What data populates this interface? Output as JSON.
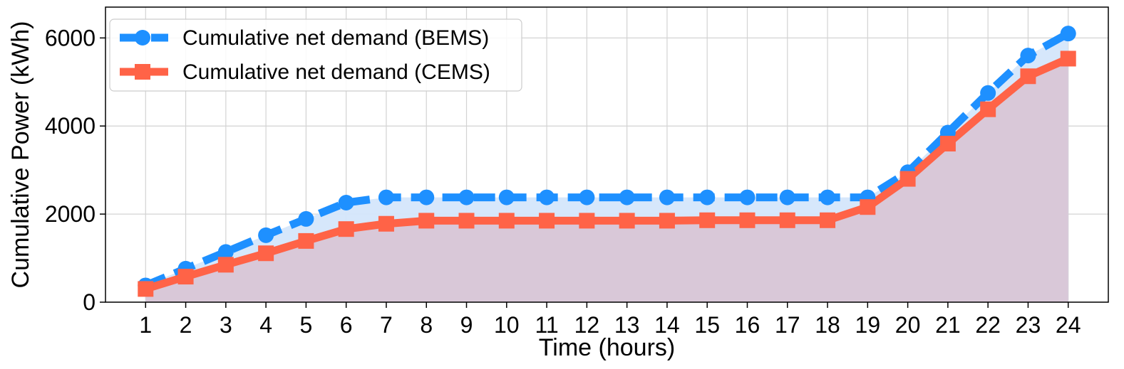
{
  "chart_data": {
    "type": "line",
    "title": "",
    "xlabel": "Time (hours)",
    "ylabel": "Cumulative Power (kWh)",
    "x": [
      1,
      2,
      3,
      4,
      5,
      6,
      7,
      8,
      9,
      10,
      11,
      12,
      13,
      14,
      15,
      16,
      17,
      18,
      19,
      20,
      21,
      22,
      23,
      24
    ],
    "xlim": [
      0,
      25
    ],
    "ylim": [
      0,
      6700
    ],
    "yticks": [
      0,
      2000,
      4000,
      6000
    ],
    "grid": true,
    "legend_position": "top-left",
    "series": [
      {
        "name": "Cumulative net demand (BEMS)",
        "color": "#1e90ff",
        "fill_color": "#d4e6fb",
        "line_style": "dashed",
        "marker": "circle",
        "values": [
          380,
          760,
          1140,
          1520,
          1890,
          2260,
          2380,
          2380,
          2380,
          2380,
          2380,
          2380,
          2380,
          2380,
          2380,
          2380,
          2380,
          2380,
          2380,
          2950,
          3850,
          4750,
          5600,
          6100
        ]
      },
      {
        "name": "Cumulative net demand (CEMS)",
        "color": "#ff6347",
        "fill_color": "#d9c6d6",
        "line_style": "solid",
        "marker": "square",
        "values": [
          300,
          580,
          850,
          1110,
          1390,
          1660,
          1780,
          1850,
          1850,
          1850,
          1850,
          1850,
          1850,
          1850,
          1860,
          1860,
          1860,
          1860,
          2160,
          2800,
          3600,
          4380,
          5130,
          5530
        ]
      }
    ]
  }
}
